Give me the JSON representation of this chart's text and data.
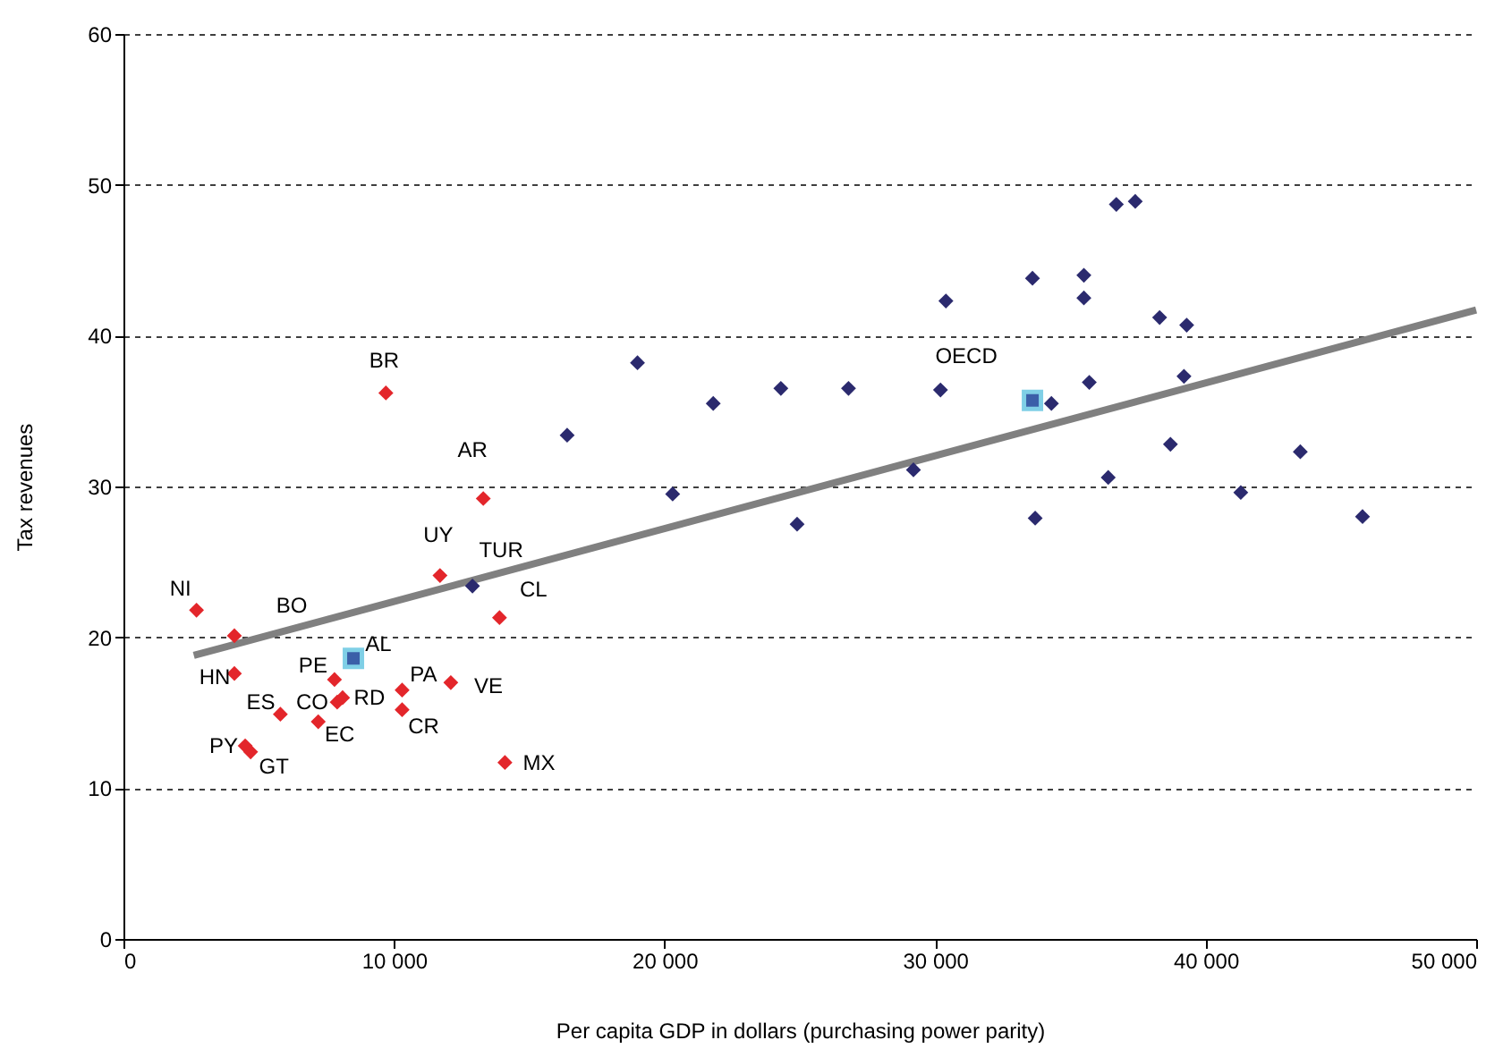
{
  "chart_data": {
    "type": "scatter",
    "xlabel": "Per capita GDP in dollars (purchasing power parity)",
    "ylabel": "Tax revenues",
    "xlim": [
      0,
      50000
    ],
    "ylim": [
      0,
      60
    ],
    "xticks": [
      0,
      {
        "value": 10000,
        "label": "10 000"
      },
      {
        "value": 20000,
        "label": "20 000"
      },
      {
        "value": 30000,
        "label": "30 000"
      },
      {
        "value": 40000,
        "label": "40 000"
      },
      {
        "value": 50000,
        "label": "50 000"
      }
    ],
    "yticks": [
      0,
      10,
      20,
      30,
      40,
      50,
      60
    ],
    "grid": "y",
    "series": [
      {
        "type": "line",
        "color": "#808080",
        "line_style": "solid",
        "marker": "none",
        "x": [
          2600,
          50000
        ],
        "values": [
          18.8,
          41.7
        ]
      },
      {
        "color": "#e3262b",
        "marker": "diamond",
        "x": [
          9700,
          13300,
          11700,
          13900,
          2700,
          4100,
          4100,
          7800,
          7900,
          8100,
          5800,
          7200,
          4500,
          4700,
          10300,
          10300,
          12100,
          14100
        ],
        "values": [
          36.2,
          29.2,
          24.1,
          21.3,
          21.8,
          20.1,
          17.6,
          17.2,
          15.7,
          16.0,
          14.9,
          14.4,
          12.8,
          12.4,
          16.5,
          15.2,
          17.0,
          11.7
        ]
      },
      {
        "color": "#2b2a6e",
        "marker": "diamond",
        "x": [
          12900,
          16400,
          19000,
          20300,
          21800,
          24300,
          24900,
          26800,
          29200,
          30200,
          30400,
          33600,
          33700,
          34300,
          35500,
          35500,
          35700,
          36400,
          36700,
          37400,
          38300,
          38700,
          39200,
          39300,
          41300,
          43500,
          45800
        ],
        "values": [
          23.4,
          33.4,
          38.2,
          29.5,
          35.5,
          36.5,
          27.5,
          36.5,
          31.1,
          36.4,
          42.3,
          43.8,
          27.9,
          35.5,
          42.5,
          44.0,
          36.9,
          30.6,
          48.7,
          48.9,
          41.2,
          32.8,
          37.3,
          40.7,
          29.6,
          32.3,
          28.0
        ]
      },
      {
        "color": "#3b5fa8",
        "marker": "square",
        "x": [
          8500,
          33600
        ],
        "values": [
          18.6,
          35.7
        ]
      }
    ],
    "annotations": [
      {
        "text": "BR",
        "x": 9700,
        "y": 36.2
      },
      {
        "text": "AR",
        "x": 13300,
        "y": 29.2
      },
      {
        "text": "UY",
        "x": 11700,
        "y": 24.1
      },
      {
        "text": "TUR",
        "x": 12900,
        "y": 23.4
      },
      {
        "text": "CL",
        "x": 13900,
        "y": 21.3
      },
      {
        "text": "NI",
        "x": 2700,
        "y": 21.8
      },
      {
        "text": "BO",
        "x": 4100,
        "y": 20.1
      },
      {
        "text": "HN",
        "x": 4100,
        "y": 17.6
      },
      {
        "text": "AL",
        "x": 8500,
        "y": 18.6
      },
      {
        "text": "PE",
        "x": 7800,
        "y": 17.2
      },
      {
        "text": "CO",
        "x": 7900,
        "y": 15.7
      },
      {
        "text": "RD",
        "x": 8100,
        "y": 16.0
      },
      {
        "text": "ES",
        "x": 5800,
        "y": 14.9
      },
      {
        "text": "EC",
        "x": 7200,
        "y": 14.4
      },
      {
        "text": "PY",
        "x": 4500,
        "y": 12.8
      },
      {
        "text": "GT",
        "x": 4700,
        "y": 12.4
      },
      {
        "text": "PA",
        "x": 10300,
        "y": 16.5
      },
      {
        "text": "CR",
        "x": 10300,
        "y": 15.2
      },
      {
        "text": "VE",
        "x": 12100,
        "y": 17.0
      },
      {
        "text": "MX",
        "x": 14100,
        "y": 11.7
      },
      {
        "text": "OECD",
        "x": 33600,
        "y": 35.7
      }
    ]
  }
}
